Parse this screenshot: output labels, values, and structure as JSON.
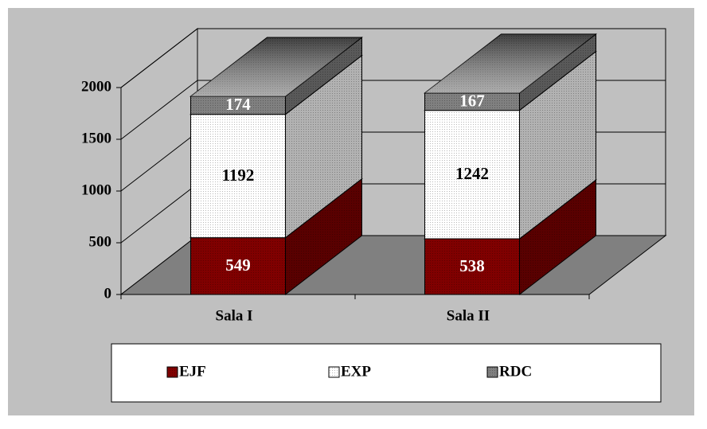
{
  "chart_data": {
    "type": "bar3d_stacked",
    "categories": [
      "Sala I",
      "Sala II"
    ],
    "series": [
      {
        "name": "EJF",
        "color": "#800000",
        "values": [
          549,
          538
        ]
      },
      {
        "name": "EXP",
        "color": "#ffffff",
        "values": [
          1192,
          1242
        ]
      },
      {
        "name": "RDC",
        "color": "#808080",
        "values": [
          174,
          167
        ]
      }
    ],
    "ylim": [
      0,
      2000
    ],
    "yticks": [
      0,
      500,
      1000,
      1500,
      2000
    ],
    "grid": true,
    "legend": "bottom"
  }
}
